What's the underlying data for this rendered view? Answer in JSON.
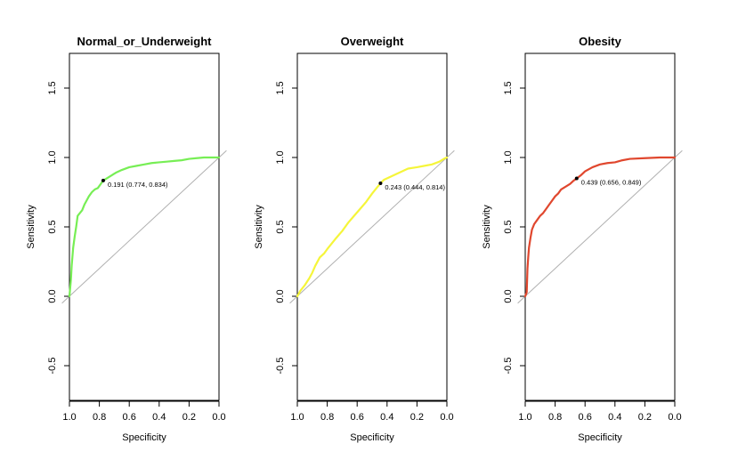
{
  "chart_data": [
    {
      "type": "line",
      "title": "Normal_or_Underweight",
      "xlabel": "Specificity",
      "ylabel": "Sensitivity",
      "x_reversed": true,
      "xlim": [
        1.0,
        0.0
      ],
      "ylim": [
        -0.75,
        1.75
      ],
      "x_ticks": [
        1.0,
        0.8,
        0.6,
        0.4,
        0.2,
        0.0
      ],
      "x_tick_labels": [
        "1.0",
        "0.8",
        "0.6",
        "0.4",
        "0.2",
        "0.0"
      ],
      "y_ticks": [
        -0.5,
        0.0,
        0.5,
        1.0,
        1.5
      ],
      "y_tick_labels": [
        "-0.5",
        "0.0",
        "0.5",
        "1.0",
        "1.5"
      ],
      "color": "#77ee55",
      "reference_line": {
        "color": "#b0b0b0"
      },
      "series": [
        {
          "x": [
            1.0,
            0.99,
            0.985,
            0.975,
            0.965,
            0.955,
            0.945,
            0.93,
            0.915,
            0.9,
            0.885,
            0.87,
            0.85,
            0.83,
            0.81,
            0.79,
            0.774,
            0.75,
            0.72,
            0.69,
            0.65,
            0.6,
            0.55,
            0.5,
            0.45,
            0.4,
            0.35,
            0.3,
            0.25,
            0.2,
            0.15,
            0.1,
            0.05,
            0.02,
            0.0
          ],
          "y": [
            0.0,
            0.12,
            0.22,
            0.35,
            0.43,
            0.5,
            0.58,
            0.6,
            0.62,
            0.66,
            0.69,
            0.72,
            0.75,
            0.77,
            0.78,
            0.81,
            0.834,
            0.85,
            0.87,
            0.89,
            0.91,
            0.93,
            0.94,
            0.95,
            0.96,
            0.965,
            0.97,
            0.975,
            0.98,
            0.99,
            0.995,
            1.0,
            1.0,
            1.0,
            1.0
          ]
        }
      ],
      "best_point": {
        "x": 0.774,
        "y": 0.834,
        "label": "0.191 (0.774, 0.834)"
      }
    },
    {
      "type": "line",
      "title": "Overweight",
      "xlabel": "Specificity",
      "ylabel": "Sensitivity",
      "x_reversed": true,
      "xlim": [
        1.0,
        0.0
      ],
      "ylim": [
        -0.75,
        1.75
      ],
      "x_ticks": [
        1.0,
        0.8,
        0.6,
        0.4,
        0.2,
        0.0
      ],
      "x_tick_labels": [
        "1.0",
        "0.8",
        "0.6",
        "0.4",
        "0.2",
        "0.0"
      ],
      "y_ticks": [
        -0.5,
        0.0,
        0.5,
        1.0,
        1.5
      ],
      "y_tick_labels": [
        "-0.5",
        "0.0",
        "0.5",
        "1.0",
        "1.5"
      ],
      "color": "#f5f53a",
      "reference_line": {
        "color": "#b0b0b0"
      },
      "series": [
        {
          "x": [
            1.0,
            0.98,
            0.95,
            0.92,
            0.9,
            0.88,
            0.85,
            0.82,
            0.8,
            0.77,
            0.74,
            0.7,
            0.66,
            0.62,
            0.58,
            0.54,
            0.5,
            0.47,
            0.444,
            0.42,
            0.38,
            0.34,
            0.3,
            0.26,
            0.2,
            0.15,
            0.1,
            0.05,
            0.02,
            0.0
          ],
          "y": [
            0.0,
            0.04,
            0.08,
            0.13,
            0.17,
            0.22,
            0.28,
            0.31,
            0.34,
            0.38,
            0.42,
            0.47,
            0.53,
            0.58,
            0.63,
            0.68,
            0.74,
            0.78,
            0.814,
            0.84,
            0.86,
            0.88,
            0.9,
            0.92,
            0.93,
            0.94,
            0.95,
            0.97,
            0.99,
            1.0
          ]
        }
      ],
      "best_point": {
        "x": 0.444,
        "y": 0.814,
        "label": "0.243 (0.444, 0.814)"
      }
    },
    {
      "type": "line",
      "title": "Obesity",
      "xlabel": "Specificity",
      "ylabel": "Sensitivity",
      "x_reversed": true,
      "xlim": [
        1.0,
        0.0
      ],
      "ylim": [
        -0.75,
        1.75
      ],
      "x_ticks": [
        1.0,
        0.8,
        0.6,
        0.4,
        0.2,
        0.0
      ],
      "x_tick_labels": [
        "1.0",
        "0.8",
        "0.6",
        "0.4",
        "0.2",
        "0.0"
      ],
      "y_ticks": [
        -0.5,
        0.0,
        0.5,
        1.0,
        1.5
      ],
      "y_tick_labels": [
        "-0.5",
        "0.0",
        "0.5",
        "1.0",
        "1.5"
      ],
      "color": "#e0472e",
      "reference_line": {
        "color": "#b0b0b0"
      },
      "series": [
        {
          "x": [
            1.0,
            0.99,
            0.985,
            0.98,
            0.975,
            0.965,
            0.955,
            0.94,
            0.92,
            0.9,
            0.88,
            0.86,
            0.84,
            0.82,
            0.8,
            0.78,
            0.76,
            0.73,
            0.7,
            0.68,
            0.656,
            0.63,
            0.6,
            0.55,
            0.5,
            0.45,
            0.4,
            0.35,
            0.3,
            0.2,
            0.1,
            0.05,
            0.0
          ],
          "y": [
            0.0,
            0.03,
            0.2,
            0.28,
            0.35,
            0.42,
            0.48,
            0.52,
            0.55,
            0.58,
            0.6,
            0.63,
            0.66,
            0.69,
            0.72,
            0.74,
            0.77,
            0.79,
            0.81,
            0.83,
            0.849,
            0.87,
            0.9,
            0.93,
            0.95,
            0.96,
            0.965,
            0.98,
            0.99,
            0.995,
            1.0,
            1.0,
            1.0
          ]
        }
      ],
      "best_point": {
        "x": 0.656,
        "y": 0.849,
        "label": "0.439 (0.656, 0.849)"
      }
    }
  ]
}
